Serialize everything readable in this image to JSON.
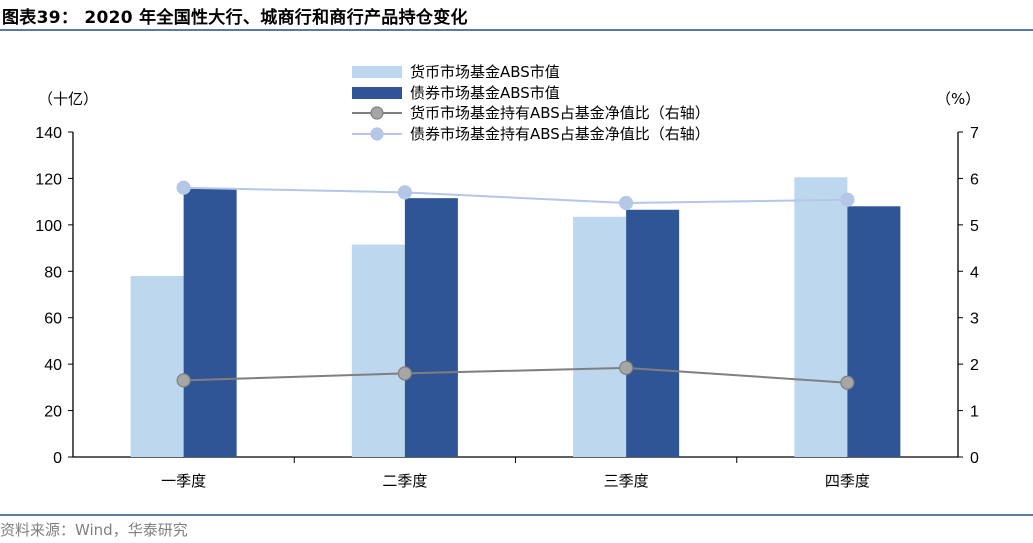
{
  "header": {
    "title": "图表39： 2020 年全国性大行、城商行和商行产品持仓变化"
  },
  "footer": {
    "source": "资料来源：Wind，华泰研究"
  },
  "colors": {
    "money_fund_bar": "#bdd7ee",
    "bond_fund_bar": "#2f5597",
    "money_fund_line": "#7f7f7f",
    "money_fund_marker": "#a6a6a6",
    "bond_fund_line": "#b4c7e7",
    "rule": "#5b7aa3"
  },
  "chart_data": {
    "type": "bar+line",
    "title": "2020 年全国性大行、城商行和商行产品持仓变化",
    "categories": [
      "一季度",
      "二季度",
      "三季度",
      "四季度"
    ],
    "left_axis": {
      "unit_label": "（十亿）",
      "ylim": [
        0,
        140
      ],
      "ticks": [
        "0",
        "20",
        "40",
        "60",
        "80",
        "100",
        "120",
        "140"
      ]
    },
    "right_axis": {
      "unit_label": "（%）",
      "ylim": [
        0,
        7
      ],
      "ticks": [
        "0",
        "1",
        "2",
        "3",
        "4",
        "5",
        "6",
        "7"
      ]
    },
    "series": [
      {
        "name": "货币市场基金ABS市值",
        "type": "bar",
        "axis": "left",
        "values": [
          78,
          91.5,
          103.5,
          120.5
        ]
      },
      {
        "name": "债券市场基金ABS市值",
        "type": "bar",
        "axis": "left",
        "values": [
          115.5,
          111.5,
          106.5,
          108
        ]
      },
      {
        "name": "货币市场基金持有ABS占基金净值比（右轴）",
        "type": "line",
        "axis": "right",
        "values": [
          1.65,
          1.8,
          1.92,
          1.6
        ]
      },
      {
        "name": "债券市场基金持有ABS占基金净值比（右轴）",
        "type": "line",
        "axis": "right",
        "values": [
          5.8,
          5.7,
          5.47,
          5.54
        ]
      }
    ],
    "legend_position": "top-center",
    "grid": false
  }
}
